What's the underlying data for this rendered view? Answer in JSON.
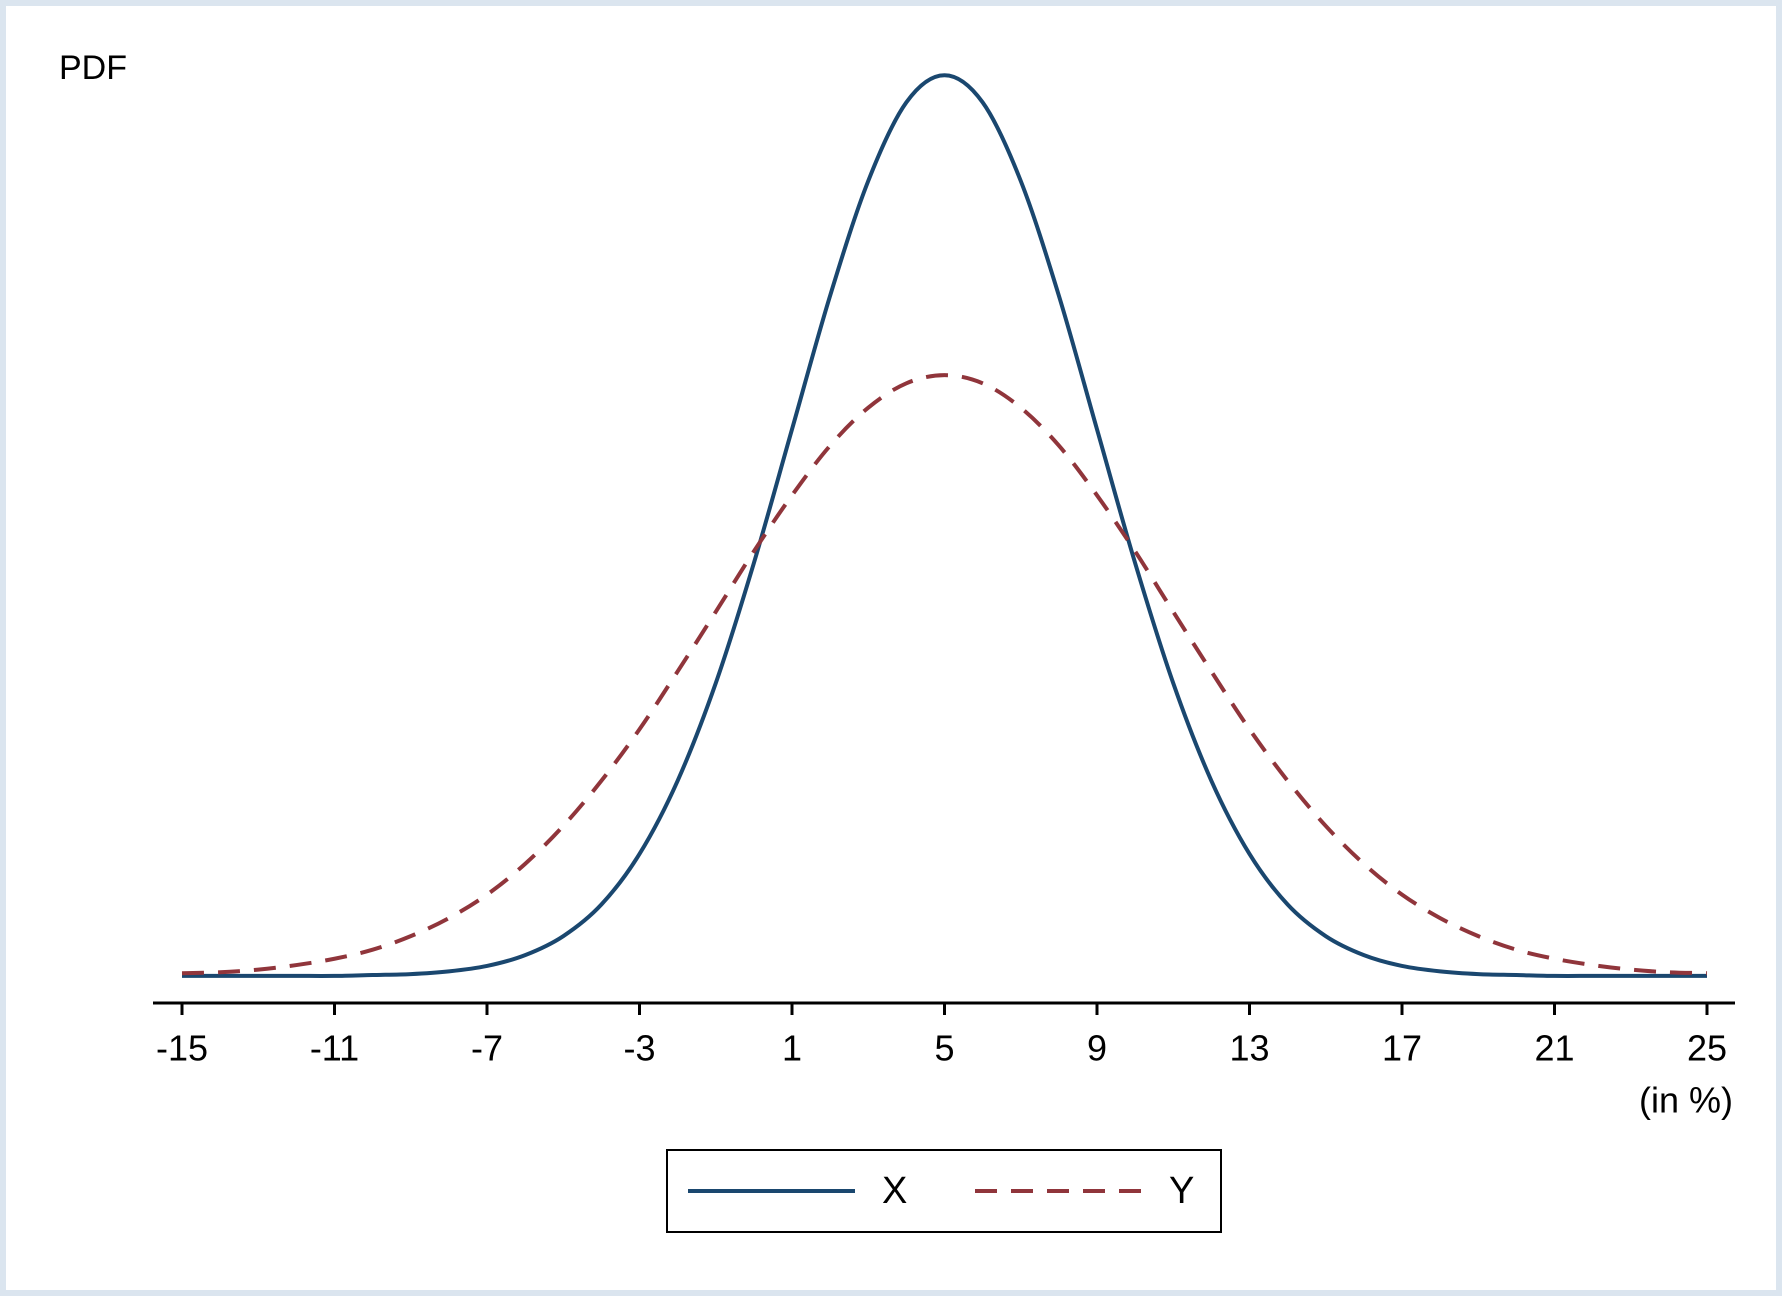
{
  "chart_data": {
    "type": "line",
    "ylabel": "PDF",
    "xlabel": "(in %)",
    "x": [
      -15,
      -14,
      -13,
      -12,
      -11,
      -10,
      -9,
      -8,
      -7,
      -6,
      -5,
      -4,
      -3,
      -2,
      -1,
      0,
      1,
      2,
      3,
      4,
      5,
      6,
      7,
      8,
      9,
      10,
      11,
      12,
      13,
      14,
      15,
      16,
      17,
      18,
      19,
      20,
      21,
      22,
      23,
      24,
      25
    ],
    "series": [
      {
        "name": "X",
        "color": "#1a476f",
        "dash": "solid",
        "values": [
          0,
          0,
          0,
          0,
          0,
          0.0001,
          0.0002,
          0.0005,
          0.0011,
          0.0023,
          0.0044,
          0.0079,
          0.0135,
          0.0216,
          0.0324,
          0.0457,
          0.0605,
          0.0753,
          0.088,
          0.0967,
          0.0997,
          0.0967,
          0.088,
          0.0753,
          0.0605,
          0.0457,
          0.0324,
          0.0216,
          0.0135,
          0.0079,
          0.0044,
          0.0023,
          0.0011,
          0.0005,
          0.0002,
          0.0001,
          0,
          0,
          0,
          0,
          0
        ]
      },
      {
        "name": "Y",
        "color": "#90353b",
        "dash": "dashed",
        "values": [
          0.0003,
          0.0004,
          0.0007,
          0.0012,
          0.0019,
          0.0029,
          0.0044,
          0.0064,
          0.009,
          0.0124,
          0.0166,
          0.0216,
          0.0273,
          0.0337,
          0.0403,
          0.047,
          0.0532,
          0.0587,
          0.0629,
          0.0656,
          0.0665,
          0.0656,
          0.0629,
          0.0587,
          0.0532,
          0.047,
          0.0403,
          0.0337,
          0.0273,
          0.0216,
          0.0166,
          0.0124,
          0.009,
          0.0064,
          0.0044,
          0.0029,
          0.0019,
          0.0012,
          0.0007,
          0.0004,
          0.0003
        ]
      }
    ],
    "xlim": [
      -15,
      25
    ],
    "xticks": [
      -15,
      -11,
      -7,
      -3,
      1,
      5,
      9,
      13,
      17,
      21,
      25
    ],
    "ylim": [
      -0.003,
      0.1036
    ],
    "legend": "bottom"
  }
}
